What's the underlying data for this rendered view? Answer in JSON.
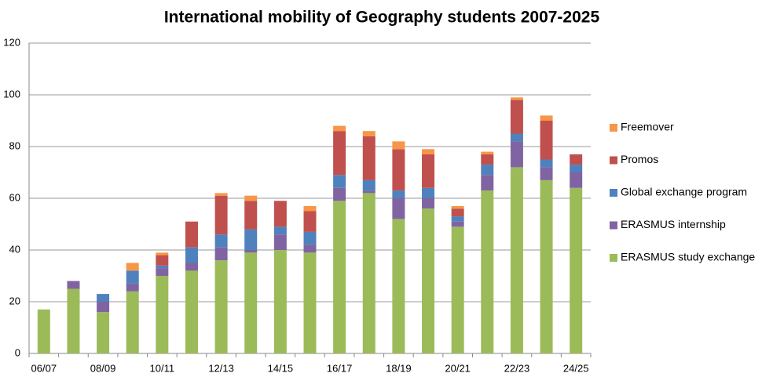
{
  "chart_data": {
    "type": "stacked-bar",
    "title": "International mobility of Geography students 2007-2025",
    "categories": [
      "06/07",
      null,
      "08/09",
      null,
      "10/11",
      null,
      "12/13",
      null,
      "14/15",
      null,
      "16/17",
      null,
      "18/19",
      null,
      "20/21",
      null,
      "22/23",
      null,
      "24/25"
    ],
    "series": [
      {
        "name": "ERASMUS study exchange",
        "color": "#9bbb59",
        "values": [
          17,
          25,
          16,
          24,
          30,
          32,
          36,
          39,
          40,
          39,
          59,
          62,
          52,
          56,
          49,
          63,
          72,
          67,
          64
        ]
      },
      {
        "name": "ERASMUS internship",
        "color": "#8064a2",
        "values": [
          0,
          3,
          4,
          3,
          3,
          3,
          5,
          1,
          6,
          3,
          5,
          1,
          8,
          4,
          2,
          6,
          10,
          5,
          6
        ]
      },
      {
        "name": "Global exchange program",
        "color": "#4f81bd",
        "values": [
          0,
          0,
          3,
          5,
          1,
          6,
          5,
          8,
          3,
          5,
          5,
          4,
          3,
          4,
          2,
          4,
          3,
          3,
          3
        ]
      },
      {
        "name": "Promos",
        "color": "#c0504d",
        "values": [
          0,
          0,
          0,
          0,
          4,
          10,
          15,
          11,
          10,
          8,
          17,
          17,
          16,
          13,
          3,
          4,
          13,
          15,
          4
        ]
      },
      {
        "name": "Freemover",
        "color": "#f79646",
        "values": [
          0,
          0,
          0,
          3,
          1,
          0,
          1,
          2,
          0,
          2,
          2,
          2,
          3,
          2,
          1,
          1,
          1,
          2,
          0
        ]
      }
    ],
    "ylim": [
      0,
      120
    ],
    "yticks": [
      0,
      20,
      40,
      60,
      80,
      100,
      120
    ],
    "grid": true,
    "legend": "right"
  }
}
